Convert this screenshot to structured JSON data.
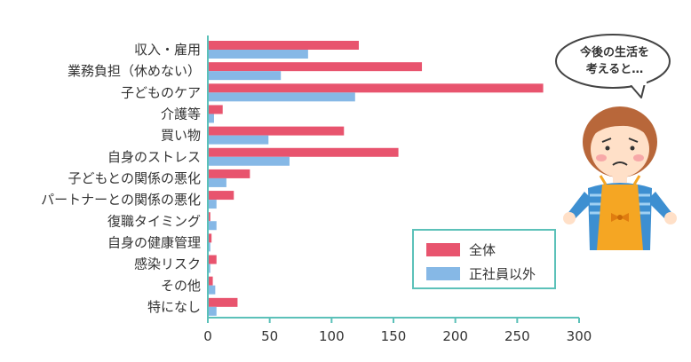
{
  "chart_data": {
    "type": "bar",
    "orientation": "horizontal",
    "categories": [
      "収入・雇用",
      "業務負担（休めない）",
      "子どものケア",
      "介護等",
      "買い物",
      "自身のストレス",
      "子どもとの関係の悪化",
      "パートナーとの関係の悪化",
      "復職タイミング",
      "自身の健康管理",
      "感染リスク",
      "その他",
      "特になし"
    ],
    "series": [
      {
        "name": "全体",
        "color": "#e8546e",
        "values": [
          122,
          173,
          271,
          12,
          110,
          154,
          34,
          21,
          2,
          3,
          7,
          4,
          24
        ]
      },
      {
        "name": "正社員以外",
        "color": "#86b8e6",
        "values": [
          81,
          59,
          119,
          5,
          49,
          66,
          15,
          7,
          7,
          2,
          2,
          6,
          7
        ]
      }
    ],
    "xlim": [
      0,
      300
    ],
    "xticks": [
      "0",
      "50",
      "100",
      "150",
      "200",
      "250",
      "300"
    ],
    "axis_color": "#5cc1b9",
    "legend_position": "bottom-right"
  },
  "illustration": {
    "bubble_lines": [
      "今後の生活を",
      "考えると…"
    ]
  }
}
